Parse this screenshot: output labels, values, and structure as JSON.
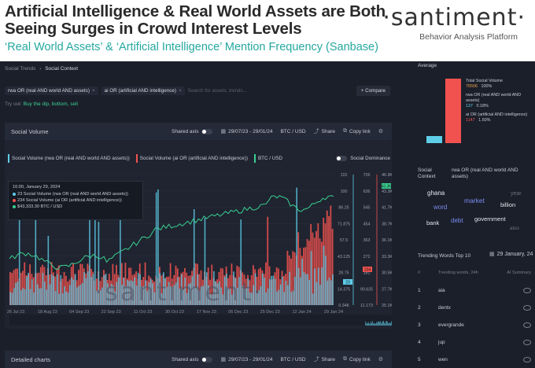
{
  "headline": "Artificial Intelligence & Real World Assets are Both Seeing Surges in Crowd Interest Levels",
  "subline": "‘Real World Assets’ & ‘Artificial Intelligence’ Mention Frequency (Sanbase)",
  "brand": {
    "name": "·santiment·",
    "tagline": "Behavior Analysis Platform"
  },
  "breadcrumbs": [
    "Social Trends",
    "Social Context"
  ],
  "queries": [
    "rwa OR (real AND world AND assets)",
    "ai OR (artificial AND intelligence)"
  ],
  "search_placeholder": "Search for assets, trends...",
  "compare_label": "+ Compare",
  "tryout": {
    "prefix": "Try out:",
    "link": "Buy the dip, bottom, sell"
  },
  "panel": {
    "title": "Social Volume",
    "shared_axis": "Shared axis",
    "date_range": "29/07/23 - 29/01/24",
    "pair": "BTC / USD",
    "share": "Share",
    "copy_link": "Copy link",
    "social_dominance": "Social Dominance"
  },
  "legend": [
    {
      "label": "Social Volume (rwa OR (real AND world AND assets))",
      "color": "#5ecde8"
    },
    {
      "label": "Social Volume (ai OR (artificial AND intelligence))",
      "color": "#f2524f"
    },
    {
      "label": "BTC / USD",
      "color": "#3ad092"
    }
  ],
  "tooltip": {
    "date": "16:00, January 29, 2024",
    "rows": [
      "23 Social Volume (rwa OR (real AND world AND assets))",
      "234 Social Volume (ai OR (artificial AND intelligence))",
      "$43,333.30 BTC / USD"
    ]
  },
  "watermark": "·santiment·",
  "chart_data": {
    "type": "bar",
    "x_ticks": [
      "26 Jul 23",
      "18 Aug 23",
      "04 Sep 23",
      "22 Sep 23",
      "11 Oct 23",
      "30 Oct 23",
      "17 Nov 23",
      "06 Dec 23",
      "25 Dec 23",
      "12 Jan 24",
      "29 Jan 24"
    ],
    "axis_blue": [
      "115",
      "100",
      "86.25",
      "71.875",
      "57.5",
      "43.125",
      "28.75",
      "14.375",
      "0.348"
    ],
    "axis_red": [
      "726",
      "636",
      "545",
      "454",
      "363",
      "272",
      "181",
      "90.625",
      "11.173"
    ],
    "axis_btc": [
      "46.9K",
      "43.3K",
      "41.7K",
      "38.7K",
      "36.1K",
      "33.3K",
      "30.5K",
      "27.7K",
      "25.1K"
    ],
    "last_values": {
      "rwa": "23",
      "ai": "234",
      "btc": "43.3K"
    },
    "series": [
      {
        "name": "Social Volume (rwa OR (real AND world AND assets))",
        "color": "#5ecde8"
      },
      {
        "name": "Social Volume (ai OR (artificial AND intelligence))",
        "color": "#f2524f"
      },
      {
        "name": "BTC / USD",
        "color": "#3ad092"
      }
    ]
  },
  "detailed_charts": "Detailed charts",
  "average": {
    "title": "Average",
    "total_label": "Total Social Volume",
    "total_value": "76506",
    "total_pct": "100%",
    "rwa_label": "rwa OR (real AND world AND assets)",
    "rwa_value": "137",
    "rwa_pct": "0.18%",
    "ai_label": "ai OR (artificial AND intelligence)",
    "ai_value": "1147",
    "ai_pct": "1.50%"
  },
  "social_context": {
    "label": "Social Context",
    "query": "rwa OR (real AND world AND assets)",
    "words": [
      {
        "text": "ghana",
        "color": "#e6e8ee",
        "size": 8
      },
      {
        "text": "year",
        "color": "#6a707c",
        "size": 7
      },
      {
        "text": "market",
        "color": "#7a8cf0",
        "size": 8.5
      },
      {
        "text": "word",
        "color": "#7a8cf0",
        "size": 8
      },
      {
        "text": "billion",
        "color": "#e6e8ee",
        "size": 7.5
      },
      {
        "text": "government",
        "color": "#e6e8ee",
        "size": 7.5
      },
      {
        "text": "bank",
        "color": "#e6e8ee",
        "size": 7.5
      },
      {
        "text": "debt",
        "color": "#7a8cf0",
        "size": 8
      },
      {
        "text": "also",
        "color": "#6a707c",
        "size": 6.5
      }
    ]
  },
  "trending": {
    "title": "Trending Words Top 10",
    "date": "29 January, 24",
    "col_word": "Trending words, 24h",
    "col_summary": "AI Summary",
    "rows": [
      {
        "rank": "1",
        "word": "aia"
      },
      {
        "rank": "2",
        "word": "dentx"
      },
      {
        "rank": "3",
        "word": "evergrande"
      },
      {
        "rank": "4",
        "word": "jup"
      },
      {
        "rank": "5",
        "word": "wen"
      }
    ]
  }
}
